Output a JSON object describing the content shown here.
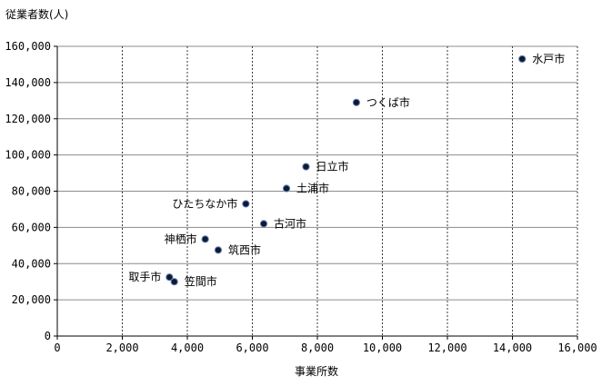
{
  "chart_data": {
    "type": "scatter",
    "title": "",
    "ylabel": "従業者数(人)",
    "xlabel": "事業所数",
    "xlim": [
      0,
      16000
    ],
    "ylim": [
      0,
      160000
    ],
    "x_ticks": [
      0,
      2000,
      4000,
      6000,
      8000,
      10000,
      12000,
      14000,
      16000
    ],
    "y_ticks": [
      0,
      20000,
      40000,
      60000,
      80000,
      100000,
      120000,
      140000,
      160000
    ],
    "x_tick_labels": [
      "0",
      "2,000",
      "4,000",
      "6,000",
      "8,000",
      "10,000",
      "12,000",
      "14,000",
      "16,000"
    ],
    "y_tick_labels": [
      "0",
      "20,000",
      "40,000",
      "60,000",
      "80,000",
      "100,000",
      "120,000",
      "140,000",
      "160,000"
    ],
    "grid": true,
    "marker_color": "#0a1a3a",
    "points": [
      {
        "label": "水戸市",
        "x": 14300,
        "y": 153000,
        "label_side": "right"
      },
      {
        "label": "つくば市",
        "x": 9200,
        "y": 129000,
        "label_side": "right"
      },
      {
        "label": "日立市",
        "x": 7650,
        "y": 93500,
        "label_side": "right"
      },
      {
        "label": "土浦市",
        "x": 7050,
        "y": 81500,
        "label_side": "right"
      },
      {
        "label": "ひたちなか市",
        "x": 5800,
        "y": 73000,
        "label_side": "left"
      },
      {
        "label": "古河市",
        "x": 6350,
        "y": 62000,
        "label_side": "right"
      },
      {
        "label": "神栖市",
        "x": 4550,
        "y": 53500,
        "label_side": "left"
      },
      {
        "label": "筑西市",
        "x": 4950,
        "y": 47500,
        "label_side": "right"
      },
      {
        "label": "取手市",
        "x": 3450,
        "y": 32500,
        "label_side": "left"
      },
      {
        "label": "笠間市",
        "x": 3600,
        "y": 30000,
        "label_side": "right"
      }
    ]
  }
}
